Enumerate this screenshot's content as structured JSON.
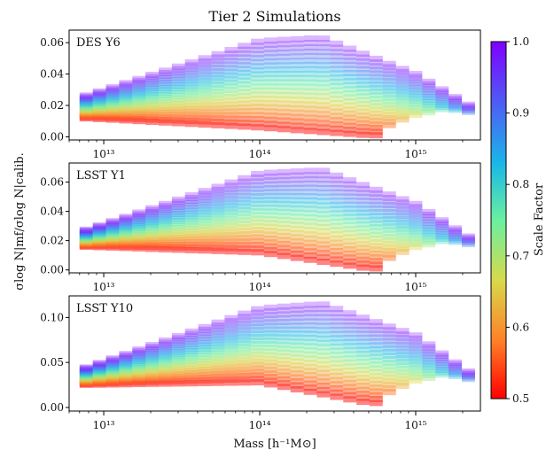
{
  "figure": {
    "title": "Tier 2 Simulations",
    "xlabel": "Mass [h⁻¹M⊙]",
    "ylabel": "σlog N|mf/σlog N|calib."
  },
  "colorbar": {
    "label": "Scale Factor",
    "range": [
      0.5,
      1.0
    ],
    "ticks": [
      "0.5",
      "0.6",
      "0.7",
      "0.8",
      "0.9",
      "1.0"
    ],
    "colormap": [
      "#ff0000",
      "#ff7f27",
      "#d8d94a",
      "#6af0a0",
      "#19b7e8",
      "#4e5cf5",
      "#7f00ff"
    ]
  },
  "chart_data": [
    {
      "type": "area",
      "panel_label": "DES Y6",
      "x_scale": "log",
      "xlim": [
        6000000000000.0,
        2600000000000000.0
      ],
      "ylim": [
        -0.002,
        0.068
      ],
      "yticks": [
        "0.00",
        "0.02",
        "0.04",
        "0.06"
      ],
      "xticks": [
        "10¹³",
        "10¹⁴",
        "10¹⁵"
      ],
      "mass_bins": [
        7200000000000.0,
        1000000000000000.0,
        2200000000000000.0
      ],
      "scale_factor_range": [
        0.5,
        1.0
      ],
      "envelope": {
        "scale_0_5": [
          {
            "mass": 7000000000000.0,
            "y": 0.012
          },
          {
            "mass": 100000000000000.0,
            "y": 0.006
          },
          {
            "mass": 500000000000000.0,
            "y": 0.001
          }
        ],
        "scale_1_0": [
          {
            "mass": 7000000000000.0,
            "y": 0.025
          },
          {
            "mass": 100000000000000.0,
            "y": 0.061
          },
          {
            "mass": 250000000000000.0,
            "y": 0.063
          },
          {
            "mass": 1000000000000000.0,
            "y": 0.04
          },
          {
            "mass": 2400000000000000.0,
            "y": 0.018
          }
        ]
      }
    },
    {
      "type": "area",
      "panel_label": "LSST Y1",
      "x_scale": "log",
      "xlim": [
        6000000000000.0,
        2600000000000000.0
      ],
      "ylim": [
        -0.002,
        0.073
      ],
      "yticks": [
        "0.00",
        "0.02",
        "0.04",
        "0.06"
      ],
      "xticks": [
        "10¹³",
        "10¹⁴",
        "10¹⁵"
      ],
      "mass_bins": [
        7200000000000.0,
        1000000000000000.0,
        2200000000000000.0
      ],
      "scale_factor_range": [
        0.5,
        1.0
      ],
      "envelope": {
        "scale_0_5": [
          {
            "mass": 7000000000000.0,
            "y": 0.016
          },
          {
            "mass": 100000000000000.0,
            "y": 0.012
          },
          {
            "mass": 500000000000000.0,
            "y": 0.001
          }
        ],
        "scale_1_0": [
          {
            "mass": 7000000000000.0,
            "y": 0.026
          },
          {
            "mass": 100000000000000.0,
            "y": 0.066
          },
          {
            "mass": 250000000000000.0,
            "y": 0.068
          },
          {
            "mass": 1000000000000000.0,
            "y": 0.045
          },
          {
            "mass": 2400000000000000.0,
            "y": 0.02
          }
        ]
      }
    },
    {
      "type": "area",
      "panel_label": "LSST Y10",
      "x_scale": "log",
      "xlim": [
        6000000000000.0,
        2600000000000000.0
      ],
      "ylim": [
        -0.004,
        0.124
      ],
      "yticks": [
        "0.00",
        "0.05",
        "0.10"
      ],
      "xticks": [
        "10¹³",
        "10¹⁴",
        "10¹⁵"
      ],
      "mass_bins": [
        7200000000000.0,
        1000000000000000.0,
        2200000000000000.0
      ],
      "scale_factor_range": [
        0.5,
        1.0
      ],
      "envelope": {
        "scale_0_5": [
          {
            "mass": 7000000000000.0,
            "y": 0.025
          },
          {
            "mass": 100000000000000.0,
            "y": 0.028
          },
          {
            "mass": 500000000000000.0,
            "y": 0.005
          }
        ],
        "scale_1_0": [
          {
            "mass": 7000000000000.0,
            "y": 0.042
          },
          {
            "mass": 100000000000000.0,
            "y": 0.11
          },
          {
            "mass": 250000000000000.0,
            "y": 0.115
          },
          {
            "mass": 1000000000000000.0,
            "y": 0.08
          },
          {
            "mass": 2400000000000000.0,
            "y": 0.035
          }
        ]
      }
    }
  ]
}
